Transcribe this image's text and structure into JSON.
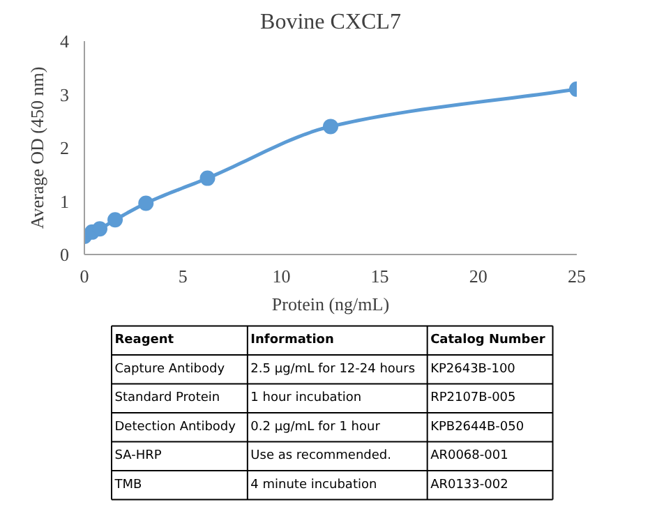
{
  "chart_data": [
    {
      "type": "line",
      "title": "Bovine CXCL7",
      "xlabel": "Protein (ng/mL)",
      "ylabel": "Average OD (450 nm)",
      "x": [
        0,
        0.39,
        0.78,
        1.56,
        3.125,
        6.25,
        12.5,
        25
      ],
      "series": [
        {
          "color": "#5b9bd5",
          "values": [
            0.34,
            0.42,
            0.48,
            0.65,
            0.96,
            1.43,
            2.4,
            3.1
          ]
        }
      ],
      "xlim": [
        0,
        25
      ],
      "xticks": [
        0,
        5,
        10,
        15,
        20,
        25
      ],
      "ylim": [
        0,
        4
      ],
      "yticks": [
        0,
        1,
        2,
        3,
        4
      ],
      "grid": false,
      "marker": "circle",
      "line_style": "solid"
    },
    {
      "type": "other",
      "annotations": [
        "Reagent",
        "Information",
        "Catalog Number",
        "Capture Antibody",
        "2.5 µg/mL for 12-24 hours",
        "KP2643B-100",
        "Standard Protein",
        "1 hour incubation",
        "RP2107B-005",
        "Detection Antibody",
        "0.2 µg/mL for 1 hour",
        "KPB2644B-050",
        "SA-HRP",
        "Use as recommended.",
        "AR0068-001",
        "TMB",
        "4 minute incubation",
        "AR0133-002"
      ]
    }
  ]
}
